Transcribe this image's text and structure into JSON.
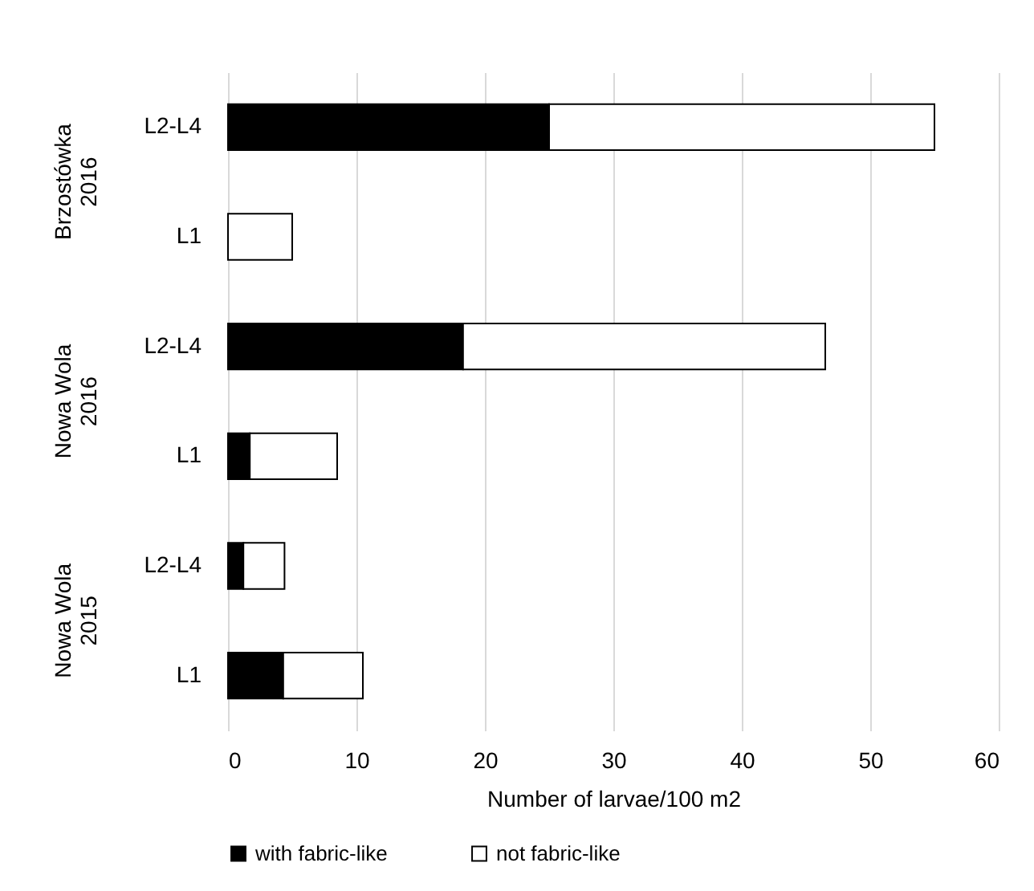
{
  "chart_data": {
    "type": "bar",
    "orientation": "horizontal",
    "stacked": true,
    "xlabel": "Number of larvae/100 m2",
    "categories": [
      "L2-L4",
      "L1",
      "L2-L4",
      "L1",
      "L2-L4",
      "L1"
    ],
    "series": [
      {
        "name": "with fabric-like",
        "color": "#000000",
        "values": [
          25,
          0,
          18.3,
          1.7,
          1.2,
          4.3
        ]
      },
      {
        "name": "not fabric-like",
        "color": "#ffffff",
        "values": [
          30,
          5,
          28.2,
          6.8,
          3.2,
          6.2
        ]
      }
    ],
    "xlim": [
      0,
      60
    ],
    "xticks": [
      0,
      10,
      20,
      30,
      40,
      50,
      60
    ],
    "grid": "x",
    "legend": "bottom",
    "annotations": [
      "Brzostówka\n2016",
      "Nowa Wola\n2016",
      "Nowa Wola\n2015"
    ]
  }
}
